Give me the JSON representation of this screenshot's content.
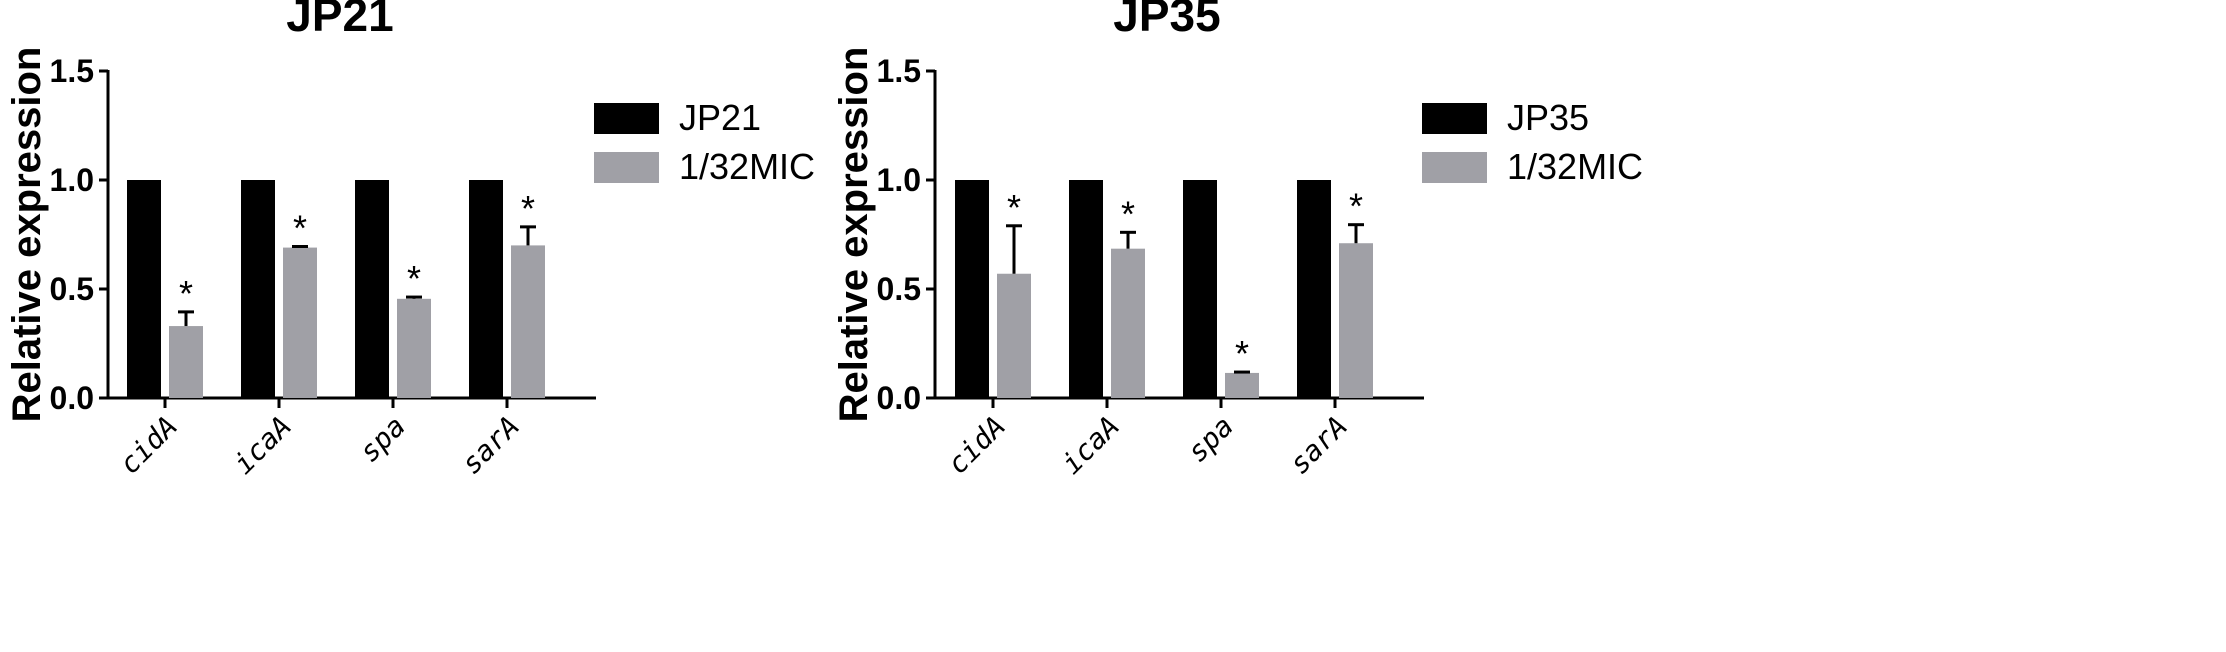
{
  "chart_data": [
    {
      "type": "bar",
      "title": "JP21",
      "ylabel": "Relative expression",
      "xlabel": "",
      "ylim": [
        0,
        1.5
      ],
      "yticks": [
        "0.0",
        "0.5",
        "1.0",
        "1.5"
      ],
      "grid": false,
      "legend_position": "top-right",
      "categories": [
        "cidA",
        "icaA",
        "spa",
        "sarA"
      ],
      "series": [
        {
          "name": "JP21",
          "color": "#000000",
          "values": [
            1.0,
            1.0,
            1.0,
            1.0
          ],
          "errors": [
            0,
            0,
            0,
            0
          ]
        },
        {
          "name": "1/32MIC",
          "color": "#a0a0a6",
          "values": [
            0.33,
            0.69,
            0.455,
            0.7
          ],
          "errors": [
            0.065,
            0.005,
            0.008,
            0.085
          ]
        }
      ],
      "annotations": [
        "*",
        "*",
        "*",
        "*"
      ]
    },
    {
      "type": "bar",
      "title": "JP35",
      "ylabel": "Relative expression",
      "xlabel": "",
      "ylim": [
        0,
        1.5
      ],
      "yticks": [
        "0.0",
        "0.5",
        "1.0",
        "1.5"
      ],
      "grid": false,
      "legend_position": "top-right",
      "categories": [
        "cidA",
        "icaA",
        "spa",
        "sarA"
      ],
      "series": [
        {
          "name": "JP35",
          "color": "#000000",
          "values": [
            1.0,
            1.0,
            1.0,
            1.0
          ],
          "errors": [
            0,
            0,
            0,
            0
          ]
        },
        {
          "name": "1/32MIC",
          "color": "#a0a0a6",
          "values": [
            0.57,
            0.685,
            0.115,
            0.71
          ],
          "errors": [
            0.22,
            0.075,
            0.004,
            0.085
          ]
        }
      ],
      "annotations": [
        "*",
        "*",
        "*",
        "*"
      ]
    }
  ]
}
